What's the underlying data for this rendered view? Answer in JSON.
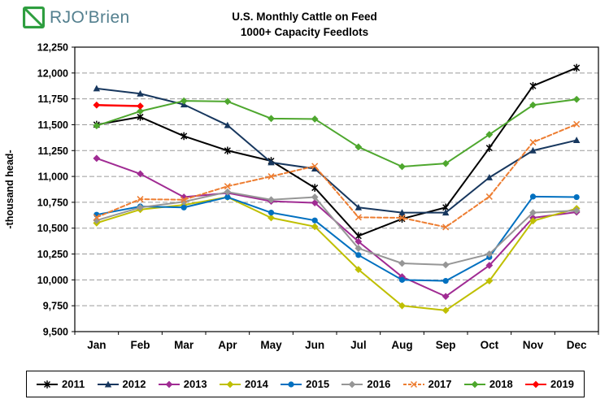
{
  "header": {
    "logo_text": "RJO'Brien",
    "title_line1": "U.S. Monthly Cattle on Feed",
    "title_line2": "1000+ Capacity Feedlots"
  },
  "colors": {
    "logo_green": "#2E9E3F",
    "logo_text_color": "#54808F",
    "grid": "#9a9a9a",
    "axis": "#000000"
  },
  "chart_data": {
    "type": "line",
    "title": "U.S. Monthly Cattle on Feed",
    "subtitle": "1000+ Capacity Feedlots",
    "xlabel": "",
    "ylabel": "-thousand head-",
    "ylim": [
      9500,
      12250
    ],
    "ytick_step": 250,
    "grid": "horizontal-dashed",
    "legend_position": "bottom",
    "categories": [
      "Jan",
      "Feb",
      "Mar",
      "Apr",
      "May",
      "Jun",
      "Jul",
      "Aug",
      "Sep",
      "Oct",
      "Nov",
      "Dec"
    ],
    "series": [
      {
        "name": "2011",
        "color": "#000000",
        "marker": "star",
        "line": "solid",
        "values": [
          11500,
          11575,
          11390,
          11250,
          11150,
          10890,
          10425,
          10590,
          10700,
          11275,
          11875,
          12050
        ]
      },
      {
        "name": "2012",
        "color": "#17375E",
        "marker": "triangle",
        "line": "solid",
        "values": [
          11850,
          11800,
          11695,
          11495,
          11135,
          11075,
          10700,
          10650,
          10650,
          10990,
          11250,
          11350
        ]
      },
      {
        "name": "2013",
        "color": "#A02B93",
        "marker": "diamond",
        "line": "solid",
        "values": [
          11175,
          11025,
          10800,
          10840,
          10760,
          10745,
          10370,
          10030,
          9840,
          10140,
          10600,
          10655
        ]
      },
      {
        "name": "2014",
        "color": "#BFBF00",
        "marker": "diamond",
        "line": "solid",
        "values": [
          10550,
          10680,
          10725,
          10800,
          10600,
          10515,
          10100,
          9750,
          9705,
          9990,
          10570,
          10690
        ]
      },
      {
        "name": "2015",
        "color": "#0070C0",
        "marker": "circle",
        "line": "solid",
        "values": [
          10630,
          10710,
          10700,
          10800,
          10650,
          10575,
          10240,
          10000,
          9990,
          10220,
          10805,
          10800
        ]
      },
      {
        "name": "2016",
        "color": "#969696",
        "marker": "diamond",
        "line": "solid",
        "values": [
          10575,
          10700,
          10755,
          10850,
          10775,
          10800,
          10305,
          10160,
          10145,
          10250,
          10650,
          10670
        ]
      },
      {
        "name": "2017",
        "color": "#ED7D31",
        "marker": "x",
        "line": "dashed",
        "values": [
          10605,
          10780,
          10775,
          10905,
          11000,
          11100,
          10605,
          10600,
          10510,
          10805,
          11330,
          11505
        ]
      },
      {
        "name": "2018",
        "color": "#4EA72E",
        "marker": "diamond",
        "line": "solid",
        "values": [
          11490,
          11630,
          11730,
          11725,
          11560,
          11555,
          11285,
          11095,
          11125,
          11405,
          11690,
          11745
        ]
      },
      {
        "name": "2019",
        "color": "#FF0000",
        "marker": "diamond",
        "line": "solid",
        "values": [
          11690,
          11680,
          null,
          null,
          null,
          null,
          null,
          null,
          null,
          null,
          null,
          null
        ]
      }
    ]
  }
}
